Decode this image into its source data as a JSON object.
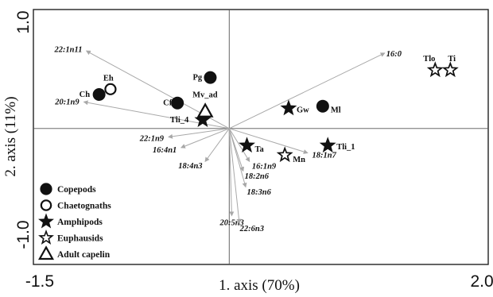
{
  "chart_data": {
    "type": "scatter",
    "subtype": "ordination biplot",
    "xlabel": "1. axis (70%)",
    "ylabel": "2. axis (11%)",
    "xlim": [
      -1.55,
      2.05
    ],
    "ylim": [
      -1.28,
      1.12
    ],
    "x_ticks": [
      {
        "value": -1.5,
        "label": "-1.5"
      },
      {
        "value": 2.0,
        "label": "2.0"
      }
    ],
    "y_ticks": [
      {
        "value": 1.0,
        "label": "1.0"
      },
      {
        "value": -1.0,
        "label": "-1.0"
      }
    ],
    "zero_lines": true,
    "legend_position": "bottom-left",
    "groups": [
      {
        "name": "Copepods",
        "marker": "filled-circle"
      },
      {
        "name": "Chaetognaths",
        "marker": "open-circle"
      },
      {
        "name": "Amphipods",
        "marker": "filled-star"
      },
      {
        "name": "Euphausids",
        "marker": "open-star"
      },
      {
        "name": "Adult capelin",
        "marker": "open-triangle"
      }
    ],
    "points": [
      {
        "label": "Pg",
        "group": "Copepods",
        "x": -0.15,
        "y": 0.48
      },
      {
        "label": "Ch",
        "group": "Copepods",
        "x": -1.03,
        "y": 0.32
      },
      {
        "label": "Cf",
        "group": "Copepods",
        "x": -0.41,
        "y": 0.24
      },
      {
        "label": "Ml",
        "group": "Copepods",
        "x": 0.74,
        "y": 0.21
      },
      {
        "label": "Eh",
        "group": "Chaetognaths",
        "x": -0.94,
        "y": 0.37
      },
      {
        "label": "Gw",
        "group": "Amphipods",
        "x": 0.47,
        "y": 0.19
      },
      {
        "label": "Tli_4",
        "group": "Amphipods",
        "x": -0.21,
        "y": 0.08
      },
      {
        "label": "Ta",
        "group": "Amphipods",
        "x": 0.14,
        "y": -0.16
      },
      {
        "label": "Tli_1",
        "group": "Amphipods",
        "x": 0.78,
        "y": -0.16
      },
      {
        "label": "Tlo",
        "group": "Euphausids",
        "x": 1.63,
        "y": 0.55
      },
      {
        "label": "Ti",
        "group": "Euphausids",
        "x": 1.75,
        "y": 0.55
      },
      {
        "label": "Mn",
        "group": "Euphausids",
        "x": 0.44,
        "y": -0.25
      },
      {
        "label": "Mv_ad",
        "group": "Adult capelin",
        "x": -0.19,
        "y": 0.16
      }
    ],
    "vectors": [
      {
        "label": "16:0",
        "x": 1.23,
        "y": 0.71
      },
      {
        "label": "22:1n11",
        "x": -1.13,
        "y": 0.73
      },
      {
        "label": "20:1n9",
        "x": -1.15,
        "y": 0.25
      },
      {
        "label": "22:1n9",
        "x": -0.48,
        "y": -0.08
      },
      {
        "label": "16:4n1",
        "x": -0.38,
        "y": -0.18
      },
      {
        "label": "18:4n3",
        "x": -0.19,
        "y": -0.31
      },
      {
        "label": "16:1n9",
        "x": 0.16,
        "y": -0.31
      },
      {
        "label": "18:2n6",
        "x": 0.11,
        "y": -0.4
      },
      {
        "label": "18:1n7",
        "x": 0.62,
        "y": -0.23
      },
      {
        "label": "18:3n6",
        "x": 0.13,
        "y": -0.55
      },
      {
        "label": "20:5n3",
        "x": 0.02,
        "y": -0.82
      },
      {
        "label": "22:6n3",
        "x": 0.08,
        "y": -0.89
      }
    ]
  }
}
